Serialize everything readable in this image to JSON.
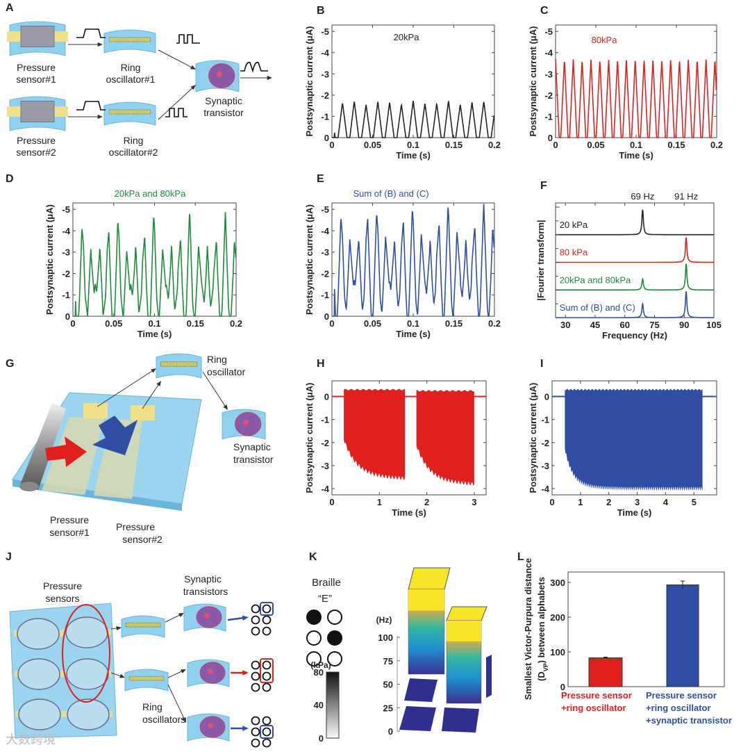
{
  "panel_letters": [
    "A",
    "B",
    "C",
    "D",
    "E",
    "F",
    "G",
    "H",
    "I",
    "J",
    "K",
    "L"
  ],
  "colors": {
    "black": "#222222",
    "red": "#e0201f",
    "green": "#1e8a3c",
    "blue": "#2f4ea3",
    "tile": "#8fd0ef",
    "yellow": "#f0e08a"
  },
  "diagram_A": {
    "sensor1": [
      "Pressure",
      "sensor#1"
    ],
    "sensor2": [
      "Pressure",
      "sensor#2"
    ],
    "ring1": [
      "Ring",
      "oscillator#1"
    ],
    "ring2": [
      "Ring",
      "oscillator#2"
    ],
    "synaptic": [
      "Synaptic",
      "transistor"
    ]
  },
  "diagram_G": {
    "ring": [
      "Ring",
      "oscillator"
    ],
    "synaptic": [
      "Synaptic",
      "transistor"
    ],
    "sensor1": [
      "Pressure",
      "sensor#1"
    ],
    "sensor2": [
      "Pressure",
      "sensor#2"
    ]
  },
  "diagram_J": {
    "sensors": [
      "Pressure",
      "sensors"
    ],
    "rings": [
      "Ring",
      "oscillators"
    ],
    "synaptics": [
      "Synaptic",
      "transistors"
    ]
  },
  "watermark": "大数跨境",
  "chart_data": [
    {
      "name": "panel-B",
      "type": "line",
      "title": "20kPa",
      "xlabel": "Time (s)",
      "ylabel": "Postsynaptic current (μA)",
      "xlim": [
        0,
        0.2
      ],
      "ylim": [
        0,
        -5.3
      ],
      "xticks": [
        0,
        0.05,
        0.1,
        0.15,
        0.2
      ],
      "yticks": [
        0,
        -1,
        -2,
        -3,
        -4,
        -5
      ],
      "color": "#222222",
      "series": [
        {
          "name": "20kPa",
          "frequency_hz": 69,
          "peak_uA": -1.65
        }
      ]
    },
    {
      "name": "panel-C",
      "type": "line",
      "title": "80kPa",
      "xlabel": "Time (s)",
      "ylabel": "Postsynaptic current (μA)",
      "xlim": [
        0,
        0.2
      ],
      "ylim": [
        0,
        -5.3
      ],
      "xticks": [
        0,
        0.05,
        0.1,
        0.15,
        0.2
      ],
      "yticks": [
        0,
        -1,
        -2,
        -3,
        -4,
        -5
      ],
      "color": "#e0201f",
      "series": [
        {
          "name": "80kPa",
          "frequency_hz": 91,
          "peak_uA": -3.7
        }
      ]
    },
    {
      "name": "panel-D",
      "type": "line",
      "title": "20kPa and 80kPa",
      "xlabel": "Time (s)",
      "ylabel": "Postsynaptic current (μA)",
      "xlim": [
        0,
        0.2
      ],
      "ylim": [
        0,
        -5.3
      ],
      "xticks": [
        0,
        0.05,
        0.1,
        0.15,
        0.2
      ],
      "yticks": [
        0,
        -1,
        -2,
        -3,
        -4,
        -5
      ],
      "color": "#1e8a3c",
      "series": [
        {
          "name": "20kPa and 80kPa",
          "components_hz": [
            69,
            91
          ],
          "max_peak_uA": -4.85
        }
      ]
    },
    {
      "name": "panel-E",
      "type": "line",
      "title": "Sum of (B) and (C)",
      "xlabel": "Time (s)",
      "ylabel": "Postsynaptic current (μA)",
      "xlim": [
        0,
        0.2
      ],
      "ylim": [
        0,
        -5.3
      ],
      "xticks": [
        0,
        0.05,
        0.1,
        0.15,
        0.2
      ],
      "yticks": [
        0,
        -1,
        -2,
        -3,
        -4,
        -5
      ],
      "color": "#2f4ea3",
      "series": [
        {
          "name": "Sum of (B) and (C)",
          "components_hz": [
            69,
            91
          ],
          "max_peak_uA": -5.2
        }
      ]
    },
    {
      "name": "panel-F",
      "type": "line",
      "xlabel": "Frequency (Hz)",
      "ylabel": "|Fourier transform|",
      "xlim": [
        25,
        105
      ],
      "ylim": [
        0,
        4.15
      ],
      "xticks": [
        30,
        45,
        60,
        75,
        90,
        105
      ],
      "yticks": [],
      "annotations": [
        "69 Hz",
        "91 Hz"
      ],
      "annotation_x": [
        69,
        91
      ],
      "series": [
        {
          "name": "20 kPa",
          "color": "#222222",
          "peaks": [
            {
              "hz": 69,
              "amp": 0.9
            }
          ]
        },
        {
          "name": "80 kPa",
          "color": "#e0201f",
          "peaks": [
            {
              "hz": 91,
              "amp": 0.9
            }
          ]
        },
        {
          "name": "20kPa and 80kPa",
          "color": "#1e8a3c",
          "peaks": [
            {
              "hz": 69,
              "amp": 0.4
            },
            {
              "hz": 91,
              "amp": 0.95
            }
          ]
        },
        {
          "name": "Sum of (B) and (C)",
          "color": "#2f4ea3",
          "peaks": [
            {
              "hz": 69,
              "amp": 0.5
            },
            {
              "hz": 91,
              "amp": 0.95
            }
          ]
        }
      ]
    },
    {
      "name": "panel-H",
      "type": "area",
      "xlabel": "Time (s)",
      "ylabel": "Postsynaptic current (μA)",
      "xlim": [
        0,
        3.25
      ],
      "ylim": [
        -4.27,
        0.68
      ],
      "xticks": [
        0,
        1,
        2,
        3
      ],
      "yticks": [
        0,
        -1,
        -2,
        -3,
        -4
      ],
      "color": "#e0201f",
      "series": [
        {
          "bursts": [
            {
              "start_s": 0.25,
              "end_s": 1.55,
              "min_uA": -3.6,
              "max_uA": 0.3
            },
            {
              "start_s": 1.78,
              "end_s": 3.0,
              "min_uA": -3.85,
              "max_uA": 0.25
            }
          ]
        }
      ]
    },
    {
      "name": "panel-I",
      "type": "area",
      "xlabel": "Time (s)",
      "ylabel": "Postsynaptic current (μA)",
      "xlim": [
        0,
        5.8
      ],
      "ylim": [
        -4.27,
        0.68
      ],
      "xticks": [
        0,
        1,
        2,
        3,
        4,
        5
      ],
      "yticks": [
        0,
        -1,
        -2,
        -3,
        -4
      ],
      "color": "#2f4ea3",
      "series": [
        {
          "bursts": [
            {
              "start_s": 0.45,
              "end_s": 5.3,
              "min_uA": -4.0,
              "max_uA": 0.3
            }
          ]
        }
      ]
    },
    {
      "name": "panel-K",
      "type": "bar3d",
      "title": "Braille",
      "subtitle": "“E”",
      "zlabel": "(Hz)",
      "zticks": [
        0,
        25,
        50,
        75,
        100
      ],
      "braille_dots": [
        1,
        0,
        0,
        1,
        0,
        0
      ],
      "colorbar": {
        "label": "(kPa)",
        "ticks": [
          80,
          40,
          0
        ]
      },
      "cells": [
        {
          "row": 1,
          "col": 1,
          "hz": 130
        },
        {
          "row": 1,
          "col": 2,
          "hz": 0
        },
        {
          "row": 2,
          "col": 1,
          "hz": 0
        },
        {
          "row": 2,
          "col": 2,
          "hz": 115
        },
        {
          "row": 3,
          "col": 1,
          "hz": 0
        },
        {
          "row": 3,
          "col": 2,
          "hz": 0
        }
      ]
    },
    {
      "name": "panel-L",
      "type": "bar",
      "ylabel": "Smallest Victor-Purpura distance",
      "ylabel2": "(D",
      "ylabel_sub": "VP",
      "ylabel3": ") between alphabets",
      "ylim": [
        0,
        330
      ],
      "yticks": [
        0,
        100,
        200,
        300
      ],
      "categories": [
        [
          "Pressure sensor",
          "+ring oscillator"
        ],
        [
          "Pressure sensor",
          "+ring oscillator",
          "+synaptic transistor"
        ]
      ],
      "values": [
        83,
        293
      ],
      "errors": [
        2,
        11
      ],
      "bar_colors": [
        "#e0201f",
        "#2f4ea3"
      ]
    }
  ]
}
